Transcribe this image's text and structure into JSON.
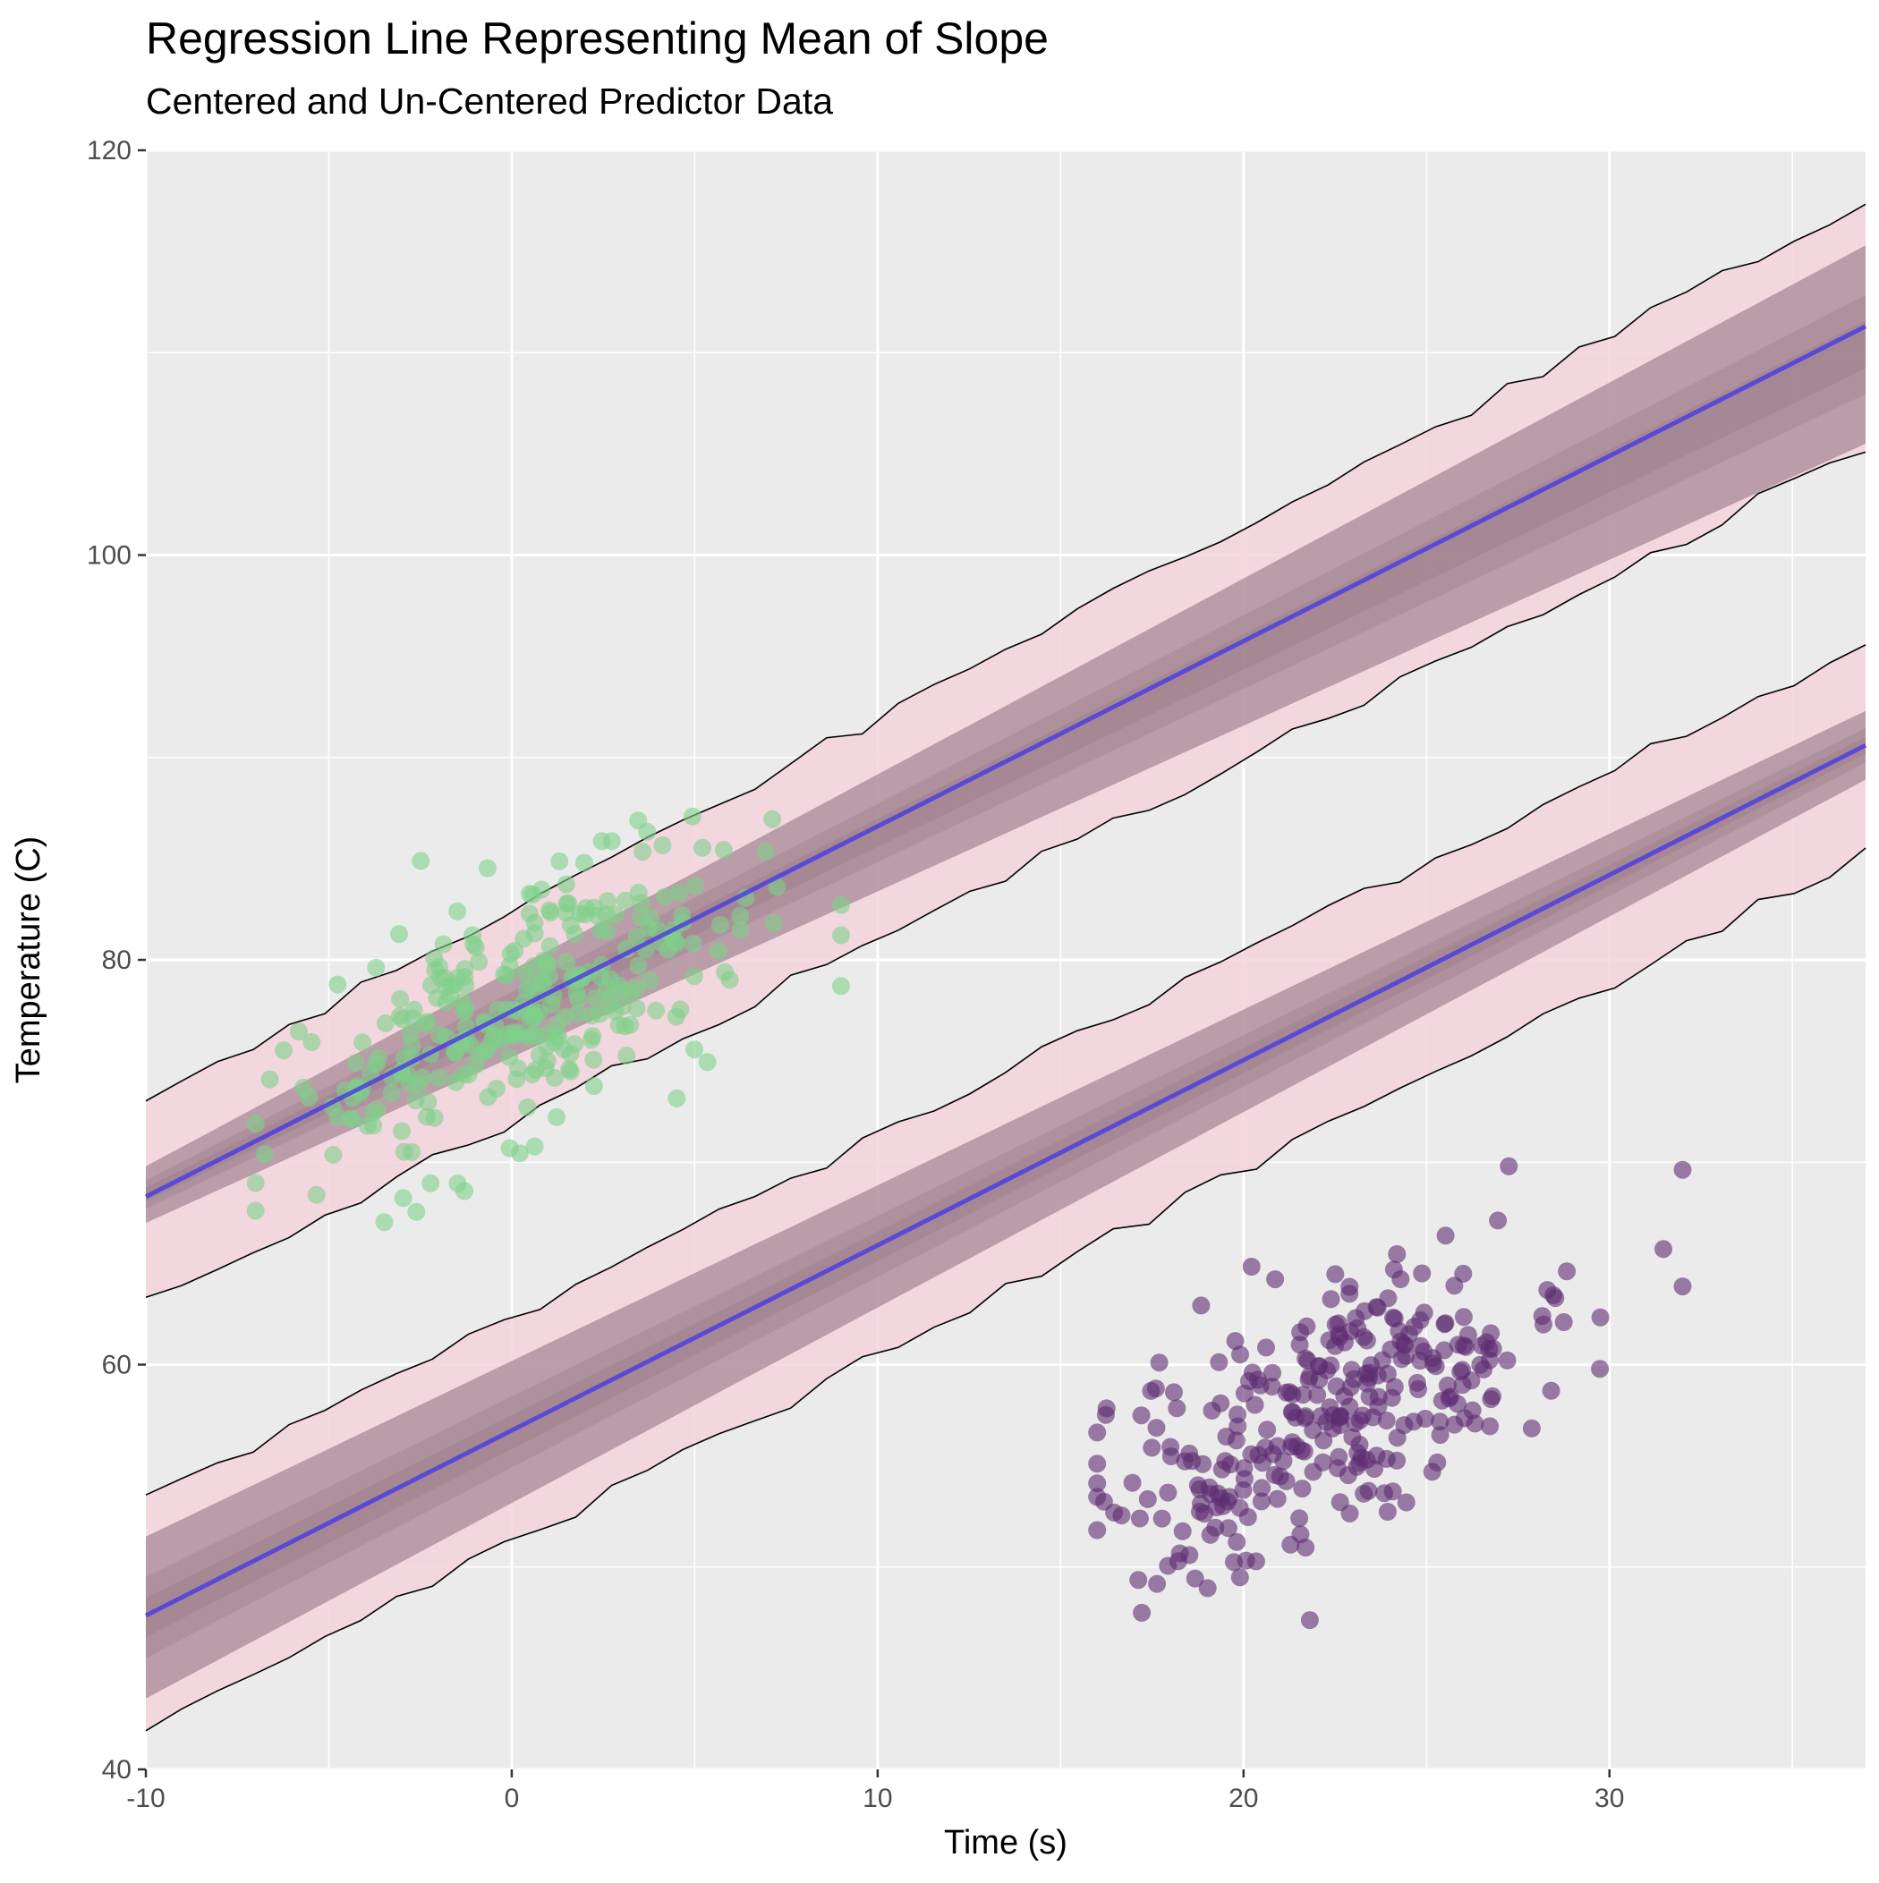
{
  "chart_data": {
    "type": "scatter",
    "title": "Regression Line Representing Mean of Slope",
    "subtitle": "Centered and Un-Centered Predictor Data",
    "xlabel": "Time (s)",
    "ylabel": "Temperature (C)",
    "xlim": [
      -10,
      37
    ],
    "ylim": [
      40,
      120
    ],
    "x_ticks": [
      -10,
      0,
      10,
      20,
      30
    ],
    "y_ticks": [
      40,
      60,
      80,
      100,
      120
    ],
    "grid": true,
    "legend": "none",
    "colors": {
      "panel": "#ebebeb",
      "gridline": "#ffffff",
      "band_fill": "#f4d3dc",
      "posterior_fill": "#8a6e7b",
      "mean_line": "#4b3fe0",
      "centered_points": "#7fd18a",
      "uncentered_points": "#5e2b72"
    },
    "series": [
      {
        "x_center": 0,
        "mean_line": {
          "x": [
            -10,
            37
          ],
          "y": [
            68.3,
            111.3
          ]
        },
        "credible_band": {
          "x": [
            -10,
            37
          ],
          "lower": [
            67.0,
            105.5
          ],
          "upper": [
            69.8,
            115.3
          ]
        },
        "prediction_band": {
          "x": [
            -10,
            37
          ],
          "lower": [
            63.0,
            105.3
          ],
          "upper": [
            73.0,
            117.4
          ]
        },
        "points": {
          "n": 300,
          "x_mean": 0.5,
          "x_sd": 3.4,
          "slope": 0.915,
          "intercept": 77.5,
          "resid_sd": 3.0,
          "x_min": -7,
          "x_max": 9
        }
      },
      {
        "x_center": 22,
        "mean_line": {
          "x": [
            -10,
            37
          ],
          "y": [
            47.6,
            90.6
          ]
        },
        "credible_band": {
          "x": [
            -10,
            37
          ],
          "lower": [
            43.5,
            88.9
          ],
          "upper": [
            51.5,
            92.3
          ]
        },
        "prediction_band": {
          "x": [
            -10,
            37
          ],
          "lower": [
            42.0,
            85.3
          ],
          "upper": [
            53.3,
            95.6
          ]
        },
        "points": {
          "n": 300,
          "x_mean": 22.5,
          "x_sd": 3.4,
          "slope": 0.915,
          "intercept": 57.4,
          "resid_sd": 3.0,
          "x_min": 16,
          "x_max": 32
        }
      }
    ]
  }
}
